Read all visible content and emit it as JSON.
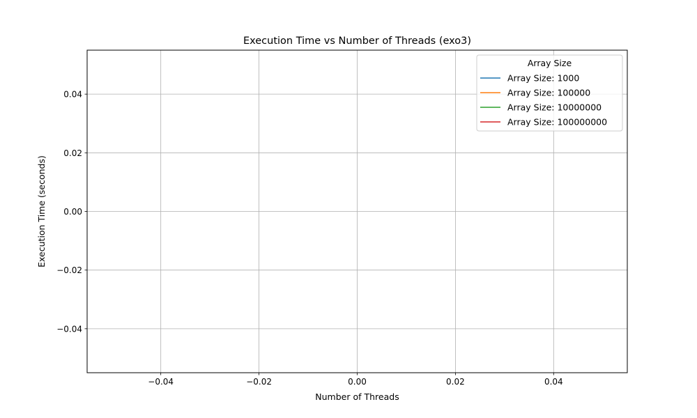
{
  "chart_data": {
    "type": "line",
    "title": "Execution Time vs Number of Threads (exo3)",
    "xlabel": "Number of Threads",
    "ylabel": "Execution Time (seconds)",
    "xlim": [
      -0.055,
      0.055
    ],
    "ylim": [
      -0.055,
      0.055
    ],
    "xticks": [
      -0.04,
      -0.02,
      0.0,
      0.02,
      0.04
    ],
    "yticks": [
      -0.04,
      -0.02,
      0.0,
      0.02,
      0.04
    ],
    "xtick_labels": [
      "−0.04",
      "−0.02",
      "0.00",
      "0.02",
      "0.04"
    ],
    "ytick_labels": [
      "−0.04",
      "−0.02",
      "0.00",
      "0.02",
      "0.04"
    ],
    "grid": true,
    "legend": {
      "title": "Array Size",
      "placement": "top-right"
    },
    "series": [
      {
        "name": "Array Size: 1000",
        "color": "#1f77b4",
        "x": [],
        "y": []
      },
      {
        "name": "Array Size: 100000",
        "color": "#ff7f0e",
        "x": [],
        "y": []
      },
      {
        "name": "Array Size: 10000000",
        "color": "#2ca02c",
        "x": [],
        "y": []
      },
      {
        "name": "Array Size: 100000000",
        "color": "#d62728",
        "x": [],
        "y": []
      }
    ]
  }
}
